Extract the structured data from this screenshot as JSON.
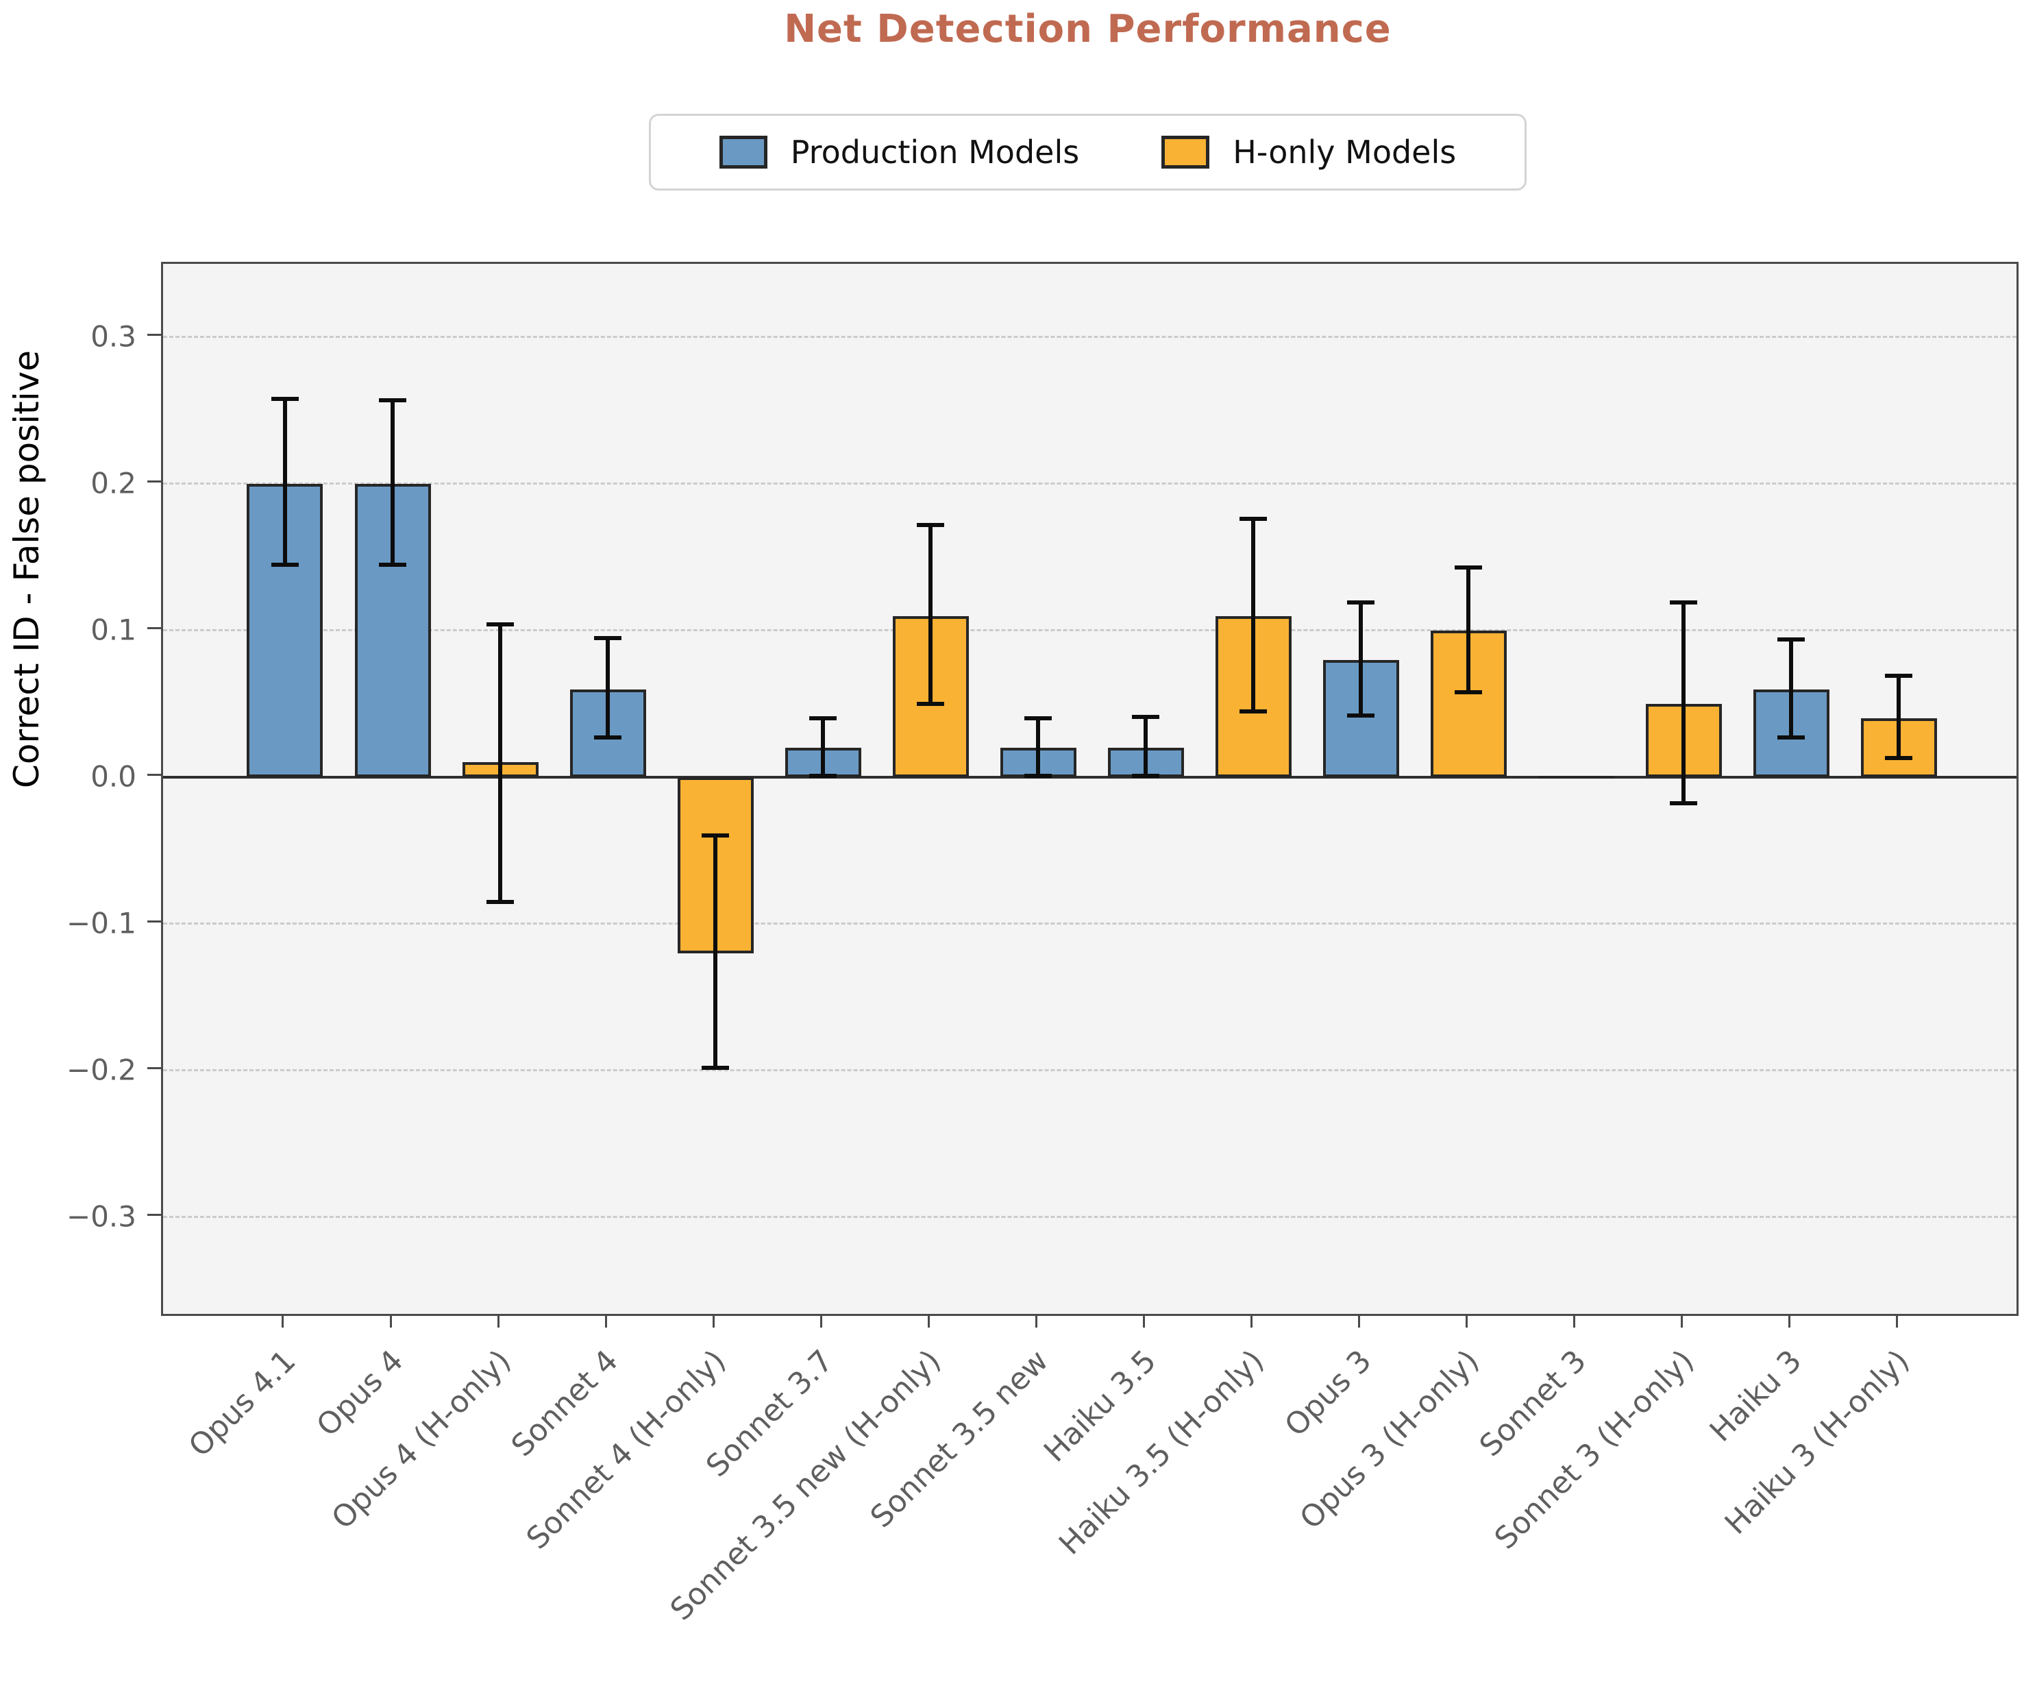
{
  "chart_data": {
    "type": "bar",
    "title": "Net Detection Performance",
    "ylabel": "Correct ID - False positive",
    "ylim": [
      -0.366,
      0.35
    ],
    "grid": "dashed-horizontal",
    "legend_position": "top-center",
    "colors": {
      "production": "#6a9ac4",
      "h_only": "#f9b233",
      "bar_edge": "#262626",
      "error_bar": "#0d0d0d",
      "title": "#c06a51",
      "plot_background": "#f4f4f4",
      "gridline": "#cbcbcb",
      "tick_label": "#5f5f5f"
    },
    "legend": [
      {
        "label": "Production Models",
        "group": "production"
      },
      {
        "label": "H-only Models",
        "group": "h_only"
      }
    ],
    "yticks": [
      {
        "v": 0.3,
        "label": "0.3"
      },
      {
        "v": 0.2,
        "label": "0.2"
      },
      {
        "v": 0.1,
        "label": "0.1"
      },
      {
        "v": 0.0,
        "label": "0.0"
      },
      {
        "v": -0.1,
        "label": "−0.1"
      },
      {
        "v": -0.2,
        "label": "−0.2"
      },
      {
        "v": -0.3,
        "label": "−0.3"
      }
    ],
    "bars": [
      {
        "label": "Opus 4.1",
        "group": "production",
        "value": 0.2,
        "err_lo": 0.145,
        "err_hi": 0.258
      },
      {
        "label": "Opus 4",
        "group": "production",
        "value": 0.2,
        "err_lo": 0.145,
        "err_hi": 0.257
      },
      {
        "label": "Opus 4 (H-only)",
        "group": "h_only",
        "value": 0.01,
        "err_lo": -0.085,
        "err_hi": 0.104
      },
      {
        "label": "Sonnet 4",
        "group": "production",
        "value": 0.06,
        "err_lo": 0.027,
        "err_hi": 0.095
      },
      {
        "label": "Sonnet 4 (H-only)",
        "group": "h_only",
        "value": -0.12,
        "err_lo": -0.198,
        "err_hi": -0.04
      },
      {
        "label": "Sonnet 3.7",
        "group": "production",
        "value": 0.02,
        "err_lo": 0.001,
        "err_hi": 0.04
      },
      {
        "label": "Sonnet 3.5 new (H-only)",
        "group": "h_only",
        "value": 0.11,
        "err_lo": 0.05,
        "err_hi": 0.172
      },
      {
        "label": "Sonnet 3.5 new",
        "group": "production",
        "value": 0.02,
        "err_lo": 0.001,
        "err_hi": 0.04
      },
      {
        "label": "Haiku 3.5",
        "group": "production",
        "value": 0.02,
        "err_lo": 0.001,
        "err_hi": 0.041
      },
      {
        "label": "Haiku 3.5 (H-only)",
        "group": "h_only",
        "value": 0.11,
        "err_lo": 0.045,
        "err_hi": 0.176
      },
      {
        "label": "Opus 3",
        "group": "production",
        "value": 0.08,
        "err_lo": 0.042,
        "err_hi": 0.119
      },
      {
        "label": "Opus 3 (H-only)",
        "group": "h_only",
        "value": 0.1,
        "err_lo": 0.058,
        "err_hi": 0.143
      },
      {
        "label": "Sonnet 3",
        "group": "production",
        "value": 0.0,
        "err_lo": 0.0,
        "err_hi": 0.0
      },
      {
        "label": "Sonnet 3 (H-only)",
        "group": "h_only",
        "value": 0.05,
        "err_lo": -0.018,
        "err_hi": 0.119
      },
      {
        "label": "Haiku 3",
        "group": "production",
        "value": 0.06,
        "err_lo": 0.027,
        "err_hi": 0.094
      },
      {
        "label": "Haiku 3 (H-only)",
        "group": "h_only",
        "value": 0.04,
        "err_lo": 0.013,
        "err_hi": 0.069
      }
    ]
  }
}
